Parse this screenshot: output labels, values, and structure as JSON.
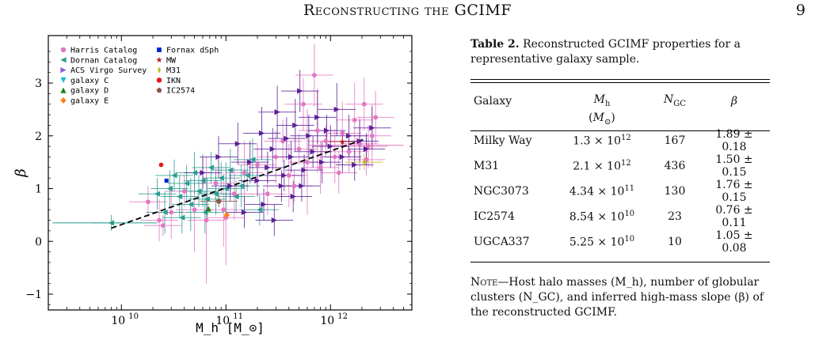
{
  "header": {
    "title": "Reconstructing the GCIMF",
    "page_number": "9"
  },
  "caption": {
    "label": "Table 2.",
    "text": "Reconstructed GCIMF properties for a representative galaxy sample."
  },
  "table": {
    "columns": [
      {
        "name": "Galaxy",
        "unit": ""
      },
      {
        "name": "M_h",
        "unit": "(M_⊙)"
      },
      {
        "name": "N_GC",
        "unit": ""
      },
      {
        "name": "β",
        "unit": ""
      }
    ],
    "rows": [
      {
        "galaxy": "Milky Way",
        "mh_mant": "1.3",
        "mh_exp": "12",
        "ngc": "167",
        "beta": "1.89 ± 0.18"
      },
      {
        "galaxy": "M31",
        "mh_mant": "2.1",
        "mh_exp": "12",
        "ngc": "436",
        "beta": "1.50 ± 0.15"
      },
      {
        "galaxy": "NGC3073",
        "mh_mant": "4.34",
        "mh_exp": "11",
        "ngc": "130",
        "beta": "1.76 ± 0.15"
      },
      {
        "galaxy": "IC2574",
        "mh_mant": "8.54",
        "mh_exp": "10",
        "ngc": "23",
        "beta": "0.76 ± 0.11"
      },
      {
        "galaxy": "UGCA337",
        "mh_mant": "5.25",
        "mh_exp": "10",
        "ngc": "10",
        "beta": "1.05 ± 0.08"
      }
    ]
  },
  "note": {
    "lead": "Note",
    "text": "—Host halo masses (M_h), number of globular clusters (N_GC), and inferred high-mass slope (β) of the reconstructed GCIMF."
  },
  "chart_data": {
    "type": "scatter",
    "xlabel": "M_h [M_⊙]",
    "ylabel": "β",
    "xscale": "log",
    "xlim": [
      2000000000.0,
      6000000000000.0
    ],
    "ylim": [
      -1.3,
      3.9
    ],
    "xticks": [
      {
        "value": 10000000000.0,
        "base": "10",
        "exp": "10"
      },
      {
        "value": 100000000000.0,
        "base": "10",
        "exp": "11"
      },
      {
        "value": 1000000000000.0,
        "base": "10",
        "exp": "12"
      }
    ],
    "yticks": [
      -1,
      0,
      1,
      2,
      3
    ],
    "legend_position": "top-left",
    "legend": [
      {
        "name": "Harris Catalog",
        "marker": "circle",
        "color": "#e377c2"
      },
      {
        "name": "Dornan Catalog",
        "marker": "triangle-left",
        "color": "#2a9d8f"
      },
      {
        "name": "ACS Virgo Survey",
        "marker": "triangle-right",
        "color": "#8e5fd8"
      },
      {
        "name": "galaxy C",
        "marker": "triangle-down",
        "color": "#17becf"
      },
      {
        "name": "galaxy D",
        "marker": "triangle-up",
        "color": "#1a7f1a"
      },
      {
        "name": "galaxy E",
        "marker": "diamond",
        "color": "#ff7f0e"
      },
      {
        "name": "Fornax dSph",
        "marker": "square",
        "color": "#0022cc"
      },
      {
        "name": "MW",
        "marker": "star",
        "color": "#b22222"
      },
      {
        "name": "M31",
        "marker": "thin-diamond",
        "color": "#bcbd22"
      },
      {
        "name": "IKN",
        "marker": "circle",
        "color": "#e31a1c"
      },
      {
        "name": "IC2574",
        "marker": "pentagon",
        "color": "#8c564b"
      }
    ],
    "fit_line": {
      "x": [
        8000000000.0,
        2200000000000.0
      ],
      "y": [
        0.25,
        1.95
      ],
      "color": "#000000",
      "style": "dashed"
    },
    "series": [
      {
        "name": "Harris Catalog",
        "color": "#e377c2",
        "marker": "circle",
        "points": [
          {
            "x": 18000000000.0,
            "y": 0.75,
            "yerr": 0.3
          },
          {
            "x": 23000000000.0,
            "y": 0.4,
            "yerr": 0.4
          },
          {
            "x": 25000000000.0,
            "y": 0.3,
            "yerr": 0.2
          },
          {
            "x": 30000000000.0,
            "y": 0.55,
            "yerr": 0.5
          },
          {
            "x": 40000000000.0,
            "y": 0.95,
            "yerr": 0.3
          },
          {
            "x": 50000000000.0,
            "y": 0.6,
            "yerr": 0.8
          },
          {
            "x": 65000000000.0,
            "y": 0.4,
            "yerr": 1.2
          },
          {
            "x": 80000000000.0,
            "y": 1.1,
            "yerr": 0.3
          },
          {
            "x": 100000000000.0,
            "y": 0.45,
            "yerr": 0.9
          },
          {
            "x": 120000000000.0,
            "y": 0.9,
            "yerr": 0.5
          },
          {
            "x": 150000000000.0,
            "y": 1.3,
            "yerr": 0.6
          },
          {
            "x": 200000000000.0,
            "y": 1.45,
            "yerr": 0.4
          },
          {
            "x": 250000000000.0,
            "y": 0.9,
            "yerr": 0.4
          },
          {
            "x": 300000000000.0,
            "y": 1.6,
            "yerr": 0.5
          },
          {
            "x": 350000000000.0,
            "y": 1.9,
            "yerr": 0.4
          },
          {
            "x": 400000000000.0,
            "y": 1.25,
            "yerr": 0.6
          },
          {
            "x": 500000000000.0,
            "y": 1.75,
            "yerr": 0.3
          },
          {
            "x": 550000000000.0,
            "y": 2.6,
            "yerr": 0.5
          },
          {
            "x": 600000000000.0,
            "y": 1.5,
            "yerr": 1.0
          },
          {
            "x": 700000000000.0,
            "y": 3.15,
            "yerr": 0.6
          },
          {
            "x": 800000000000.0,
            "y": 1.4,
            "yerr": 0.5
          },
          {
            "x": 900000000000.0,
            "y": 1.9,
            "yerr": 0.3
          },
          {
            "x": 1100000000000.0,
            "y": 1.6,
            "yerr": 0.5
          },
          {
            "x": 1300000000000.0,
            "y": 2.05,
            "yerr": 0.6
          },
          {
            "x": 1500000000000.0,
            "y": 1.7,
            "yerr": 0.4
          },
          {
            "x": 1700000000000.0,
            "y": 2.3,
            "yerr": 0.7
          },
          {
            "x": 1900000000000.0,
            "y": 1.85,
            "yerr": 0.5
          },
          {
            "x": 2100000000000.0,
            "y": 2.6,
            "yerr": 0.5
          },
          {
            "x": 2300000000000.0,
            "y": 1.8,
            "yerr": 0.4
          },
          {
            "x": 2500000000000.0,
            "y": 2.0,
            "yerr": 0.6
          },
          {
            "x": 2700000000000.0,
            "y": 2.35,
            "yerr": 0.5
          },
          {
            "x": 2200000000000.0,
            "y": 1.55,
            "yerr": 0.3
          },
          {
            "x": 1200000000000.0,
            "y": 1.3,
            "yerr": 0.4
          },
          {
            "x": 450000000000.0,
            "y": 1.05,
            "yerr": 0.3
          },
          {
            "x": 750000000000.0,
            "y": 2.1,
            "yerr": 0.8
          },
          {
            "x": 95000000000.0,
            "y": 0.6,
            "yerr": 0.7
          }
        ]
      },
      {
        "name": "Dornan Catalog",
        "color": "#2a9d8f",
        "marker": "triangle-left",
        "points": [
          {
            "x": 8000000000.0,
            "y": 0.35,
            "yerr": 0.15
          },
          {
            "x": 22000000000.0,
            "y": 0.9,
            "yerr": 0.3
          },
          {
            "x": 26000000000.0,
            "y": 0.55,
            "yerr": 0.4
          },
          {
            "x": 32000000000.0,
            "y": 1.25,
            "yerr": 0.3
          },
          {
            "x": 36000000000.0,
            "y": 0.85,
            "yerr": 0.4
          },
          {
            "x": 42000000000.0,
            "y": 1.1,
            "yerr": 0.35
          },
          {
            "x": 46000000000.0,
            "y": 0.7,
            "yerr": 0.5
          },
          {
            "x": 50000000000.0,
            "y": 1.3,
            "yerr": 0.4
          },
          {
            "x": 55000000000.0,
            "y": 0.95,
            "yerr": 0.3
          },
          {
            "x": 60000000000.0,
            "y": 1.15,
            "yerr": 0.5
          },
          {
            "x": 66000000000.0,
            "y": 0.8,
            "yerr": 0.4
          },
          {
            "x": 72000000000.0,
            "y": 1.4,
            "yerr": 0.3
          },
          {
            "x": 80000000000.0,
            "y": 0.9,
            "yerr": 0.4
          },
          {
            "x": 90000000000.0,
            "y": 1.2,
            "yerr": 0.3
          },
          {
            "x": 100000000000.0,
            "y": 1.0,
            "yerr": 0.5
          },
          {
            "x": 110000000000.0,
            "y": 1.35,
            "yerr": 0.4
          },
          {
            "x": 125000000000.0,
            "y": 0.85,
            "yerr": 0.3
          },
          {
            "x": 140000000000.0,
            "y": 1.05,
            "yerr": 0.4
          },
          {
            "x": 160000000000.0,
            "y": 1.25,
            "yerr": 0.3
          },
          {
            "x": 180000000000.0,
            "y": 1.55,
            "yerr": 0.4
          },
          {
            "x": 210000000000.0,
            "y": 0.6,
            "yerr": 0.3
          },
          {
            "x": 38000000000.0,
            "y": 0.45,
            "yerr": 0.3
          },
          {
            "x": 29000000000.0,
            "y": 1.0,
            "yerr": 0.35
          },
          {
            "x": 63000000000.0,
            "y": 0.55,
            "yerr": 0.4
          }
        ]
      },
      {
        "name": "ACS Virgo Survey",
        "color": "#5b1e96",
        "marker": "triangle-right",
        "points": [
          {
            "x": 60000000000.0,
            "y": 1.3,
            "yerr": 0.3
          },
          {
            "x": 85000000000.0,
            "y": 1.6,
            "yerr": 0.4
          },
          {
            "x": 110000000000.0,
            "y": 1.05,
            "yerr": 0.3
          },
          {
            "x": 130000000000.0,
            "y": 1.85,
            "yerr": 0.4
          },
          {
            "x": 150000000000.0,
            "y": 0.55,
            "yerr": 0.3
          },
          {
            "x": 170000000000.0,
            "y": 1.5,
            "yerr": 0.4
          },
          {
            "x": 200000000000.0,
            "y": 1.15,
            "yerr": 0.3
          },
          {
            "x": 220000000000.0,
            "y": 2.05,
            "yerr": 0.5
          },
          {
            "x": 250000000000.0,
            "y": 1.4,
            "yerr": 0.3
          },
          {
            "x": 280000000000.0,
            "y": 1.75,
            "yerr": 0.4
          },
          {
            "x": 310000000000.0,
            "y": 2.45,
            "yerr": 0.5
          },
          {
            "x": 340000000000.0,
            "y": 1.05,
            "yerr": 0.3
          },
          {
            "x": 380000000000.0,
            "y": 1.95,
            "yerr": 0.4
          },
          {
            "x": 420000000000.0,
            "y": 1.6,
            "yerr": 0.3
          },
          {
            "x": 460000000000.0,
            "y": 2.2,
            "yerr": 0.5
          },
          {
            "x": 510000000000.0,
            "y": 2.85,
            "yerr": 0.4
          },
          {
            "x": 560000000000.0,
            "y": 1.35,
            "yerr": 0.3
          },
          {
            "x": 620000000000.0,
            "y": 2.0,
            "yerr": 0.4
          },
          {
            "x": 680000000000.0,
            "y": 1.7,
            "yerr": 0.3
          },
          {
            "x": 750000000000.0,
            "y": 2.35,
            "yerr": 0.5
          },
          {
            "x": 830000000000.0,
            "y": 1.5,
            "yerr": 0.4
          },
          {
            "x": 920000000000.0,
            "y": 2.1,
            "yerr": 0.3
          },
          {
            "x": 1000000000000.0,
            "y": 1.8,
            "yerr": 0.4
          },
          {
            "x": 1150000000000.0,
            "y": 2.5,
            "yerr": 0.5
          },
          {
            "x": 1300000000000.0,
            "y": 1.6,
            "yerr": 0.3
          },
          {
            "x": 1500000000000.0,
            "y": 2.0,
            "yerr": 0.4
          },
          {
            "x": 1700000000000.0,
            "y": 1.45,
            "yerr": 0.3
          },
          {
            "x": 1900000000000.0,
            "y": 1.9,
            "yerr": 0.4
          },
          {
            "x": 2200000000000.0,
            "y": 1.75,
            "yerr": 0.3
          },
          {
            "x": 2500000000000.0,
            "y": 2.15,
            "yerr": 0.4
          },
          {
            "x": 230000000000.0,
            "y": 0.7,
            "yerr": 0.3
          },
          {
            "x": 290000000000.0,
            "y": 0.4,
            "yerr": 0.3
          },
          {
            "x": 360000000000.0,
            "y": 1.25,
            "yerr": 0.3
          },
          {
            "x": 440000000000.0,
            "y": 0.85,
            "yerr": 0.3
          },
          {
            "x": 530000000000.0,
            "y": 1.05,
            "yerr": 0.3
          }
        ]
      },
      {
        "name": "Fornax dSph",
        "color": "#0022cc",
        "marker": "square",
        "points": [
          {
            "x": 27000000000.0,
            "y": 1.15,
            "yerr": 0
          }
        ]
      },
      {
        "name": "IKN",
        "color": "#e31a1c",
        "marker": "circle",
        "points": [
          {
            "x": 24000000000.0,
            "y": 1.45,
            "yerr": 0
          }
        ]
      },
      {
        "name": "galaxy E",
        "color": "#ff7f0e",
        "marker": "diamond",
        "points": [
          {
            "x": 102000000000.0,
            "y": 0.5,
            "yerr": 0
          }
        ]
      },
      {
        "name": "galaxy D",
        "color": "#1a7f1a",
        "marker": "triangle-up",
        "points": [
          {
            "x": 68000000000.0,
            "y": 0.62,
            "yerr": 0
          }
        ]
      },
      {
        "name": "M31",
        "color": "#bcbd22",
        "marker": "thin-diamond",
        "points": [
          {
            "x": 2100000000000.0,
            "y": 1.5,
            "yerr": 0.15
          }
        ]
      },
      {
        "name": "MW",
        "color": "#b22222",
        "marker": "star",
        "points": [
          {
            "x": 1300000000000.0,
            "y": 1.89,
            "yerr": 0.18
          }
        ]
      },
      {
        "name": "IC2574",
        "color": "#8c564b",
        "marker": "pentagon",
        "points": [
          {
            "x": 85400000000.0,
            "y": 0.76,
            "yerr": 0.11
          }
        ]
      }
    ]
  }
}
